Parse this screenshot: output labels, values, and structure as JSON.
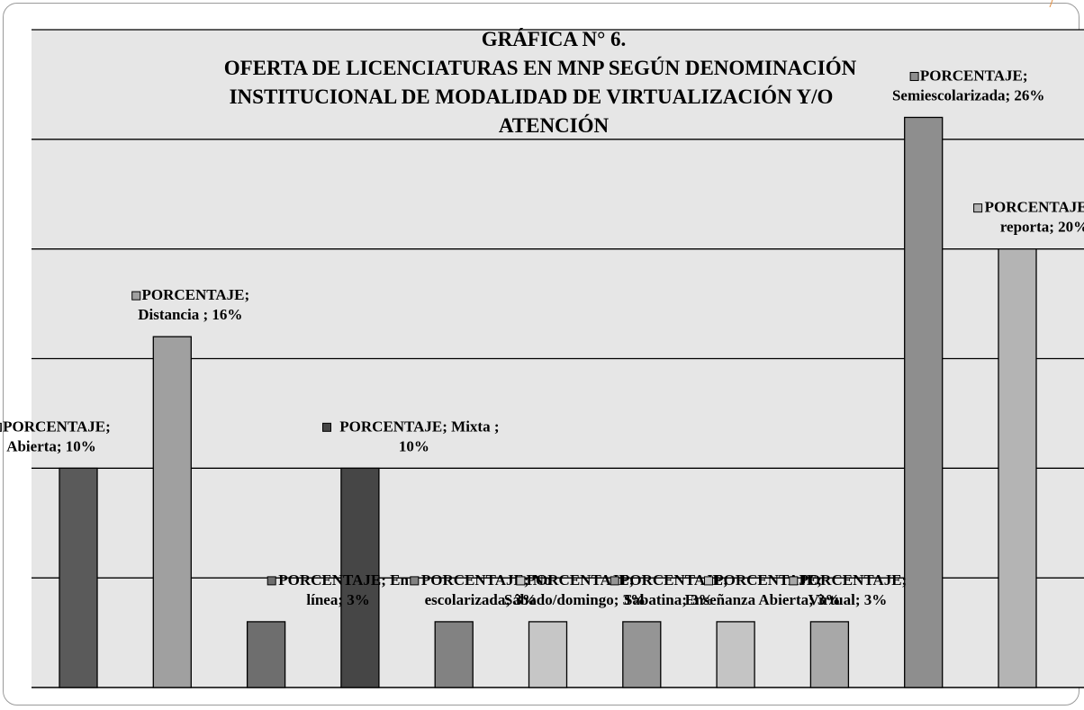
{
  "chart_data": {
    "type": "bar",
    "title_lines": [
      "GRÁFICA N° 6.",
      "OFERTA DE LICENCIATURAS EN MNP SEGÚN DENOMINACIÓN",
      "INSTITUCIONAL DE MODALIDAD DE VIRTUALIZACIÓN Y/O",
      "ATENCIÓN"
    ],
    "series_name": "PORCENTAJE",
    "categories": [
      "Abierta",
      "Distancia ",
      "En línea",
      "Mixta ",
      "No escolarizada",
      "Sábado/domingo",
      "Sabatina",
      "Enseñanza Abierta",
      "Virtual",
      "Semiescolarizada",
      "No reporta"
    ],
    "values": [
      10,
      16,
      3,
      10,
      3,
      3,
      3,
      3,
      3,
      26,
      20
    ],
    "data_labels": [
      [
        "PORCENTAJE;",
        "Abierta; 10%"
      ],
      [
        "PORCENTAJE;",
        "Distancia ; 16%"
      ],
      [
        "PORCENTAJE; En",
        "línea; 3%"
      ],
      [
        "PORCENTAJE; Mixta ;",
        "10%"
      ],
      [
        "PORCENTAJE; No",
        "escolarizada; 3%"
      ],
      [
        "PORCENTAJE;",
        "Sábado/domingo; 3%"
      ],
      [
        "PORCENTAJE;",
        "Sabatina; 3%"
      ],
      [
        "PORCENTAJE;",
        "Enseñanza Abierta; 3%"
      ],
      [
        "PORCENTAJE;",
        "Virtual; 3%"
      ],
      [
        "PORCENTAJE;",
        "Semiescolarizada; 26%"
      ],
      [
        "PORCENTAJE; No",
        "reporta; 20%"
      ]
    ],
    "colors": [
      "#5a5a5a",
      "#a0a0a0",
      "#6e6e6e",
      "#464646",
      "#828282",
      "#c6c6c6",
      "#959595",
      "#c4c4c4",
      "#a8a8a8",
      "#8e8e8e",
      "#b4b4b4"
    ],
    "ylim": [
      0,
      30
    ],
    "grid": true,
    "plot_background": "#e6e6e6",
    "legend": "none"
  }
}
